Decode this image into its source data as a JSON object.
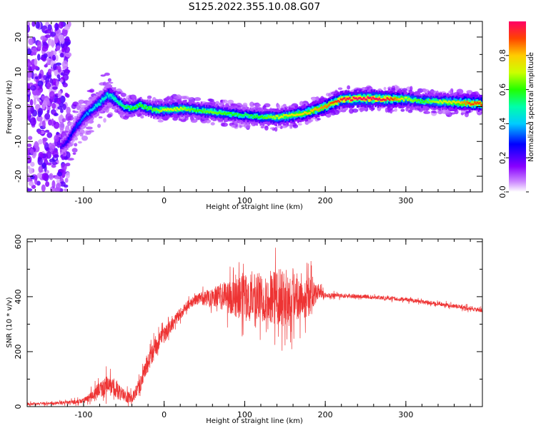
{
  "title": "S125.2022.355.10.08.G07",
  "chart_data": [
    {
      "type": "heatmap",
      "xlabel": "Height of straight line (km)",
      "ylabel": "Frequency (Hz)",
      "xlim": [
        -170,
        395
      ],
      "ylim": [
        -24.5,
        24.5
      ],
      "x_ticks": [
        -100,
        0,
        100,
        200,
        300
      ],
      "y_ticks": [
        -20,
        -10,
        0,
        10,
        20
      ],
      "colorbar": {
        "label": "Normalized spectral amplitude",
        "range": [
          0.0,
          1.0
        ],
        "ticks": [
          0.0,
          0.2,
          0.4,
          0.6,
          0.8
        ]
      },
      "ridge": {
        "x": [
          -130,
          -120,
          -110,
          -100,
          -90,
          -80,
          -70,
          -60,
          -50,
          -40,
          -30,
          -20,
          -10,
          0,
          20,
          40,
          60,
          80,
          100,
          120,
          140,
          160,
          180,
          200,
          220,
          240,
          260,
          280,
          300,
          320,
          340,
          360,
          380,
          395
        ],
        "freq": [
          -12,
          -10,
          -6,
          -3,
          -1,
          1,
          3.5,
          2,
          0,
          -0.5,
          0.5,
          -0.5,
          -1,
          -1,
          -0.5,
          -1,
          -1.5,
          -2,
          -2.5,
          -3,
          -3,
          -2.5,
          -1.5,
          0,
          2,
          2.3,
          2.3,
          2.2,
          2.2,
          1.5,
          1.5,
          1.2,
          1,
          0.8
        ],
        "amplitude": [
          0.2,
          0.25,
          0.3,
          0.35,
          0.4,
          0.45,
          0.45,
          0.5,
          0.55,
          0.6,
          0.6,
          0.6,
          0.65,
          0.7,
          0.7,
          0.6,
          0.65,
          0.6,
          0.55,
          0.6,
          0.7,
          0.75,
          0.8,
          0.85,
          0.95,
          1.0,
          1.0,
          0.95,
          0.7,
          0.6,
          0.7,
          0.75,
          0.9,
          0.9
        ]
      }
    },
    {
      "type": "line",
      "xlabel": "Height of straight line (km)",
      "ylabel": "SNR (10 * v/v)",
      "xlim": [
        -170,
        395
      ],
      "ylim": [
        0,
        610
      ],
      "x_ticks": [
        -100,
        0,
        100,
        200,
        300
      ],
      "y_ticks": [
        0,
        200,
        400,
        600
      ],
      "series": [
        {
          "color": "#ee3333",
          "x": [
            -170,
            -140,
            -120,
            -100,
            -90,
            -80,
            -70,
            -60,
            -50,
            -40,
            -30,
            -20,
            -10,
            0,
            10,
            20,
            30,
            40,
            60,
            80,
            100,
            120,
            140,
            160,
            180,
            190,
            200,
            250,
            300,
            350,
            395
          ],
          "mean": [
            10,
            12,
            15,
            20,
            40,
            60,
            80,
            60,
            40,
            30,
            80,
            160,
            220,
            260,
            300,
            340,
            370,
            390,
            400,
            400,
            395,
            400,
            400,
            405,
            400,
            410,
            405,
            400,
            390,
            370,
            350
          ],
          "spread": [
            8,
            8,
            10,
            15,
            30,
            45,
            60,
            50,
            40,
            30,
            50,
            60,
            60,
            50,
            40,
            35,
            30,
            30,
            60,
            100,
            140,
            150,
            170,
            160,
            120,
            50,
            15,
            12,
            12,
            12,
            12
          ]
        }
      ]
    }
  ]
}
